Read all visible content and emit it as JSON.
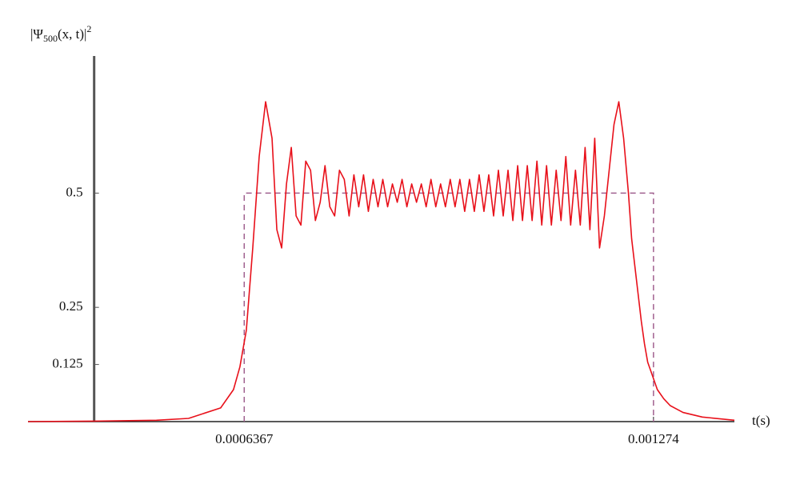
{
  "chart_data": {
    "type": "line",
    "ylabel": {
      "base": "|Ψ",
      "sub": "500",
      "mid": "(x, t)|",
      "sup": "2"
    },
    "xlabel": "t(s)",
    "xlim": [
      0.0003,
      0.0014
    ],
    "ylim": [
      0,
      0.8
    ],
    "xticks": [
      0.0006367,
      0.001274
    ],
    "yticks": [
      0.125,
      0.25,
      0.5
    ],
    "y_axis_at": 0.000403,
    "series": [
      {
        "color": "#e8101a",
        "x": [
          0.0003,
          0.0004,
          0.0005,
          0.00055,
          0.0006,
          0.00062,
          0.00063,
          0.00064,
          0.00065,
          0.00066,
          0.00067,
          0.00068,
          0.0006875,
          0.000695,
          0.0007025,
          0.00071,
          0.0007175,
          0.000725,
          0.0007325,
          0.00074,
          0.0007475,
          0.000755,
          0.0007625,
          0.00077,
          0.0007775,
          0.000785,
          0.0007925,
          0.0008,
          0.0008075,
          0.000815,
          0.0008225,
          0.00083,
          0.0008375,
          0.000845,
          0.0008525,
          0.00086,
          0.0008675,
          0.000875,
          0.0008825,
          0.00089,
          0.0008975,
          0.000905,
          0.0009125,
          0.00092,
          0.0009275,
          0.000935,
          0.0009425,
          0.00095,
          0.0009575,
          0.000965,
          0.0009725,
          0.00098,
          0.0009875,
          0.000995,
          0.0010025,
          0.00101,
          0.0010175,
          0.001025,
          0.0010325,
          0.00104,
          0.0010475,
          0.001055,
          0.0010625,
          0.00107,
          0.0010775,
          0.001085,
          0.0010925,
          0.0011,
          0.0011075,
          0.001115,
          0.0011225,
          0.00113,
          0.0011375,
          0.001145,
          0.0011525,
          0.00116,
          0.0011675,
          0.001175,
          0.0011825,
          0.00119,
          0.0011975,
          0.001205,
          0.0012125,
          0.00122,
          0.0012275,
          0.001235,
          0.00124,
          0.001245,
          0.00125,
          0.001255,
          0.00126,
          0.001265,
          0.00127,
          0.00128,
          0.00129,
          0.0013,
          0.00132,
          0.00135,
          0.0014
        ],
        "values": [
          0,
          0.001,
          0.003,
          0.007,
          0.03,
          0.07,
          0.12,
          0.2,
          0.38,
          0.58,
          0.7,
          0.62,
          0.42,
          0.38,
          0.52,
          0.6,
          0.45,
          0.43,
          0.57,
          0.55,
          0.44,
          0.48,
          0.56,
          0.47,
          0.45,
          0.55,
          0.53,
          0.45,
          0.54,
          0.47,
          0.54,
          0.46,
          0.53,
          0.47,
          0.53,
          0.47,
          0.52,
          0.48,
          0.53,
          0.47,
          0.52,
          0.48,
          0.52,
          0.47,
          0.53,
          0.47,
          0.52,
          0.47,
          0.53,
          0.47,
          0.53,
          0.46,
          0.53,
          0.46,
          0.54,
          0.46,
          0.54,
          0.45,
          0.55,
          0.45,
          0.55,
          0.44,
          0.56,
          0.44,
          0.56,
          0.44,
          0.57,
          0.43,
          0.56,
          0.43,
          0.55,
          0.44,
          0.58,
          0.43,
          0.55,
          0.43,
          0.6,
          0.42,
          0.62,
          0.38,
          0.45,
          0.55,
          0.65,
          0.7,
          0.62,
          0.5,
          0.4,
          0.34,
          0.28,
          0.22,
          0.17,
          0.13,
          0.11,
          0.07,
          0.05,
          0.035,
          0.02,
          0.01,
          0.003
        ]
      }
    ],
    "reference": {
      "color": "#a0608f",
      "dashed": true,
      "x": [
        0.0006367,
        0.0006367,
        0.001274,
        0.001274
      ],
      "y": [
        0,
        0.5,
        0.5,
        0
      ]
    }
  }
}
